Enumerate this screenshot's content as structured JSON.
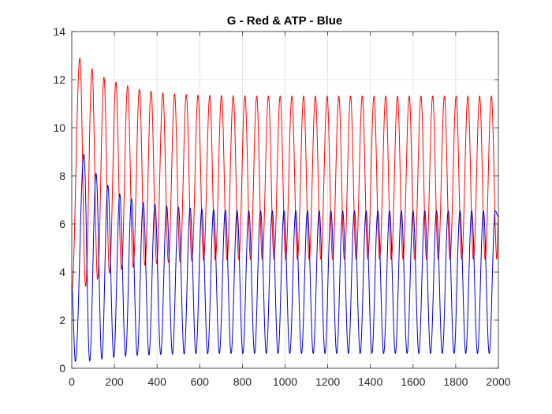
{
  "chart_data": {
    "type": "line",
    "title": "G - Red & ATP - Blue",
    "xlabel": "",
    "ylabel": "",
    "xlim": [
      0,
      2000
    ],
    "ylim": [
      0,
      14
    ],
    "x_ticks": [
      0,
      200,
      400,
      600,
      800,
      1000,
      1200,
      1400,
      1600,
      1800,
      2000
    ],
    "y_ticks": [
      0,
      2,
      4,
      6,
      8,
      10,
      12,
      14
    ],
    "grid": true,
    "legend": "none",
    "series": [
      {
        "color": "#ff0000",
        "start": 3.2,
        "peaks": [
          [
            38,
            12.9
          ],
          [
            95,
            12.45
          ],
          [
            151,
            12.1
          ],
          [
            207,
            11.9
          ],
          [
            262,
            11.75
          ],
          [
            317,
            11.6
          ],
          [
            372,
            11.52
          ],
          [
            427,
            11.45
          ],
          [
            482,
            11.41
          ],
          [
            537,
            11.38
          ],
          [
            592,
            11.36
          ],
          [
            647,
            11.35
          ],
          [
            702,
            11.34
          ],
          [
            757,
            11.33
          ],
          [
            812,
            11.33
          ],
          [
            867,
            11.32
          ],
          [
            922,
            11.32
          ],
          [
            977,
            11.32
          ],
          [
            1032,
            11.32
          ],
          [
            1087,
            11.32
          ],
          [
            1142,
            11.32
          ],
          [
            1197,
            11.32
          ],
          [
            1252,
            11.32
          ],
          [
            1307,
            11.32
          ],
          [
            1362,
            11.32
          ],
          [
            1417,
            11.32
          ],
          [
            1472,
            11.32
          ],
          [
            1527,
            11.32
          ],
          [
            1582,
            11.32
          ],
          [
            1637,
            11.32
          ],
          [
            1692,
            11.32
          ],
          [
            1747,
            11.32
          ],
          [
            1802,
            11.32
          ],
          [
            1857,
            11.32
          ],
          [
            1912,
            11.32
          ],
          [
            1967,
            11.32
          ]
        ],
        "troughs": [
          [
            65,
            3.4
          ],
          [
            121,
            3.7
          ],
          [
            177,
            3.95
          ],
          [
            233,
            4.1
          ],
          [
            288,
            4.2
          ],
          [
            343,
            4.28
          ],
          [
            398,
            4.35
          ],
          [
            453,
            4.4
          ],
          [
            508,
            4.43
          ],
          [
            563,
            4.46
          ],
          [
            618,
            4.48
          ],
          [
            673,
            4.5
          ],
          [
            728,
            4.51
          ],
          [
            783,
            4.52
          ],
          [
            838,
            4.52
          ],
          [
            893,
            4.53
          ],
          [
            948,
            4.53
          ],
          [
            1003,
            4.53
          ],
          [
            1058,
            4.53
          ],
          [
            1113,
            4.53
          ],
          [
            1168,
            4.53
          ],
          [
            1223,
            4.53
          ],
          [
            1278,
            4.53
          ],
          [
            1333,
            4.53
          ],
          [
            1388,
            4.53
          ],
          [
            1443,
            4.53
          ],
          [
            1498,
            4.53
          ],
          [
            1553,
            4.53
          ],
          [
            1608,
            4.53
          ],
          [
            1663,
            4.53
          ],
          [
            1718,
            4.53
          ],
          [
            1773,
            4.53
          ],
          [
            1828,
            4.53
          ],
          [
            1883,
            4.53
          ],
          [
            1938,
            4.53
          ],
          [
            1993,
            4.53
          ]
        ],
        "end": 6.3
      },
      {
        "color": "#0000cc",
        "start": 3.4,
        "peaks": [
          [
            57,
            8.9
          ],
          [
            114,
            8.1
          ],
          [
            169,
            7.6
          ],
          [
            225,
            7.25
          ],
          [
            280,
            7.05
          ],
          [
            335,
            6.9
          ],
          [
            390,
            6.82
          ],
          [
            445,
            6.75
          ],
          [
            500,
            6.7
          ],
          [
            555,
            6.66
          ],
          [
            610,
            6.62
          ],
          [
            665,
            6.6
          ],
          [
            720,
            6.58
          ],
          [
            775,
            6.57
          ],
          [
            830,
            6.56
          ],
          [
            885,
            6.55
          ],
          [
            940,
            6.55
          ],
          [
            995,
            6.55
          ],
          [
            1050,
            6.55
          ],
          [
            1105,
            6.55
          ],
          [
            1160,
            6.55
          ],
          [
            1215,
            6.55
          ],
          [
            1270,
            6.55
          ],
          [
            1325,
            6.55
          ],
          [
            1380,
            6.55
          ],
          [
            1435,
            6.55
          ],
          [
            1490,
            6.55
          ],
          [
            1545,
            6.55
          ],
          [
            1600,
            6.55
          ],
          [
            1655,
            6.55
          ],
          [
            1710,
            6.55
          ],
          [
            1765,
            6.55
          ],
          [
            1820,
            6.55
          ],
          [
            1875,
            6.55
          ],
          [
            1930,
            6.55
          ],
          [
            1985,
            6.55
          ]
        ],
        "troughs": [
          [
            17,
            0.28
          ],
          [
            84,
            0.3
          ],
          [
            141,
            0.38
          ],
          [
            197,
            0.45
          ],
          [
            252,
            0.5
          ],
          [
            307,
            0.53
          ],
          [
            362,
            0.55
          ],
          [
            417,
            0.57
          ],
          [
            472,
            0.58
          ],
          [
            527,
            0.59
          ],
          [
            582,
            0.6
          ],
          [
            637,
            0.6
          ],
          [
            692,
            0.61
          ],
          [
            747,
            0.61
          ],
          [
            802,
            0.61
          ],
          [
            857,
            0.61
          ],
          [
            912,
            0.61
          ],
          [
            967,
            0.61
          ],
          [
            1022,
            0.61
          ],
          [
            1077,
            0.61
          ],
          [
            1132,
            0.61
          ],
          [
            1187,
            0.61
          ],
          [
            1242,
            0.61
          ],
          [
            1297,
            0.61
          ],
          [
            1352,
            0.61
          ],
          [
            1407,
            0.61
          ],
          [
            1462,
            0.61
          ],
          [
            1517,
            0.61
          ],
          [
            1572,
            0.61
          ],
          [
            1627,
            0.61
          ],
          [
            1682,
            0.61
          ],
          [
            1737,
            0.61
          ],
          [
            1792,
            0.61
          ],
          [
            1847,
            0.61
          ],
          [
            1902,
            0.61
          ],
          [
            1957,
            0.61
          ]
        ],
        "end": 6.3
      }
    ]
  }
}
